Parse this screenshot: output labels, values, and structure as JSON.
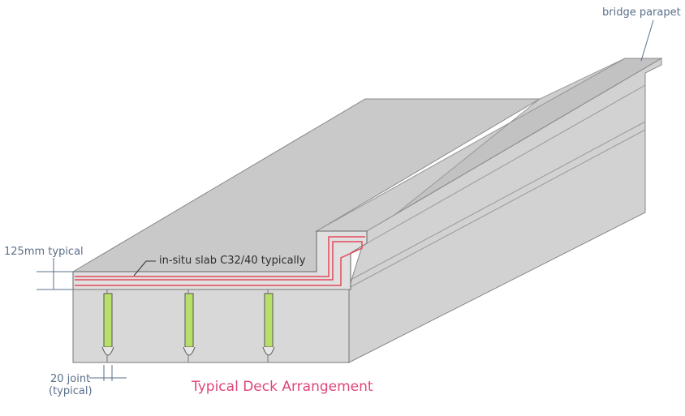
{
  "labels": {
    "bridge_parapet": "bridge parapet",
    "slab_thickness": "125mm typical",
    "in_situ_slab": "in-situ slab C32/40 typically",
    "joint_line1": "20 joint",
    "joint_line2": "(typical)"
  },
  "caption": "Typical Deck Arrangement",
  "colors": {
    "concrete": "#d4d4d4",
    "top_surface": "#c8c8c8",
    "rebar": "#e24a5a",
    "joint_fill": "#b7e06a",
    "label_text": "#5a6f8a",
    "caption": "#e0457b"
  }
}
